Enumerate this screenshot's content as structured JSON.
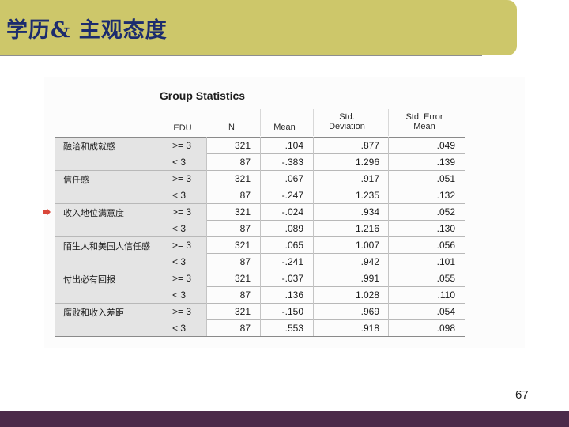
{
  "slide": {
    "title": "学历& 主观态度",
    "page_number": "67"
  },
  "table": {
    "title": "Group Statistics",
    "headers": {
      "edu": "EDU",
      "n": "N",
      "mean": "Mean",
      "std_dev_1": "Std.",
      "std_dev_2": "Deviation",
      "std_err_1": "Std. Error",
      "std_err_2": "Mean"
    },
    "groups": [
      {
        "label": "融洽和成就感",
        "rows": [
          {
            "edu": ">= 3",
            "n": "321",
            "mean": ".104",
            "sd": ".877",
            "se": ".049"
          },
          {
            "edu": "< 3",
            "n": "87",
            "mean": "-.383",
            "sd": "1.296",
            "se": ".139"
          }
        ]
      },
      {
        "label": "信任感",
        "rows": [
          {
            "edu": ">= 3",
            "n": "321",
            "mean": ".067",
            "sd": ".917",
            "se": ".051"
          },
          {
            "edu": "< 3",
            "n": "87",
            "mean": "-.247",
            "sd": "1.235",
            "se": ".132"
          }
        ]
      },
      {
        "label": "收入地位满意度",
        "rows": [
          {
            "edu": ">= 3",
            "n": "321",
            "mean": "-.024",
            "sd": ".934",
            "se": ".052"
          },
          {
            "edu": "< 3",
            "n": "87",
            "mean": ".089",
            "sd": "1.216",
            "se": ".130"
          }
        ]
      },
      {
        "label": "陌生人和美国人信任感",
        "rows": [
          {
            "edu": ">= 3",
            "n": "321",
            "mean": ".065",
            "sd": "1.007",
            "se": ".056"
          },
          {
            "edu": "< 3",
            "n": "87",
            "mean": "-.241",
            "sd": ".942",
            "se": ".101"
          }
        ]
      },
      {
        "label": "付出必有回报",
        "rows": [
          {
            "edu": ">= 3",
            "n": "321",
            "mean": "-.037",
            "sd": ".991",
            "se": ".055"
          },
          {
            "edu": "< 3",
            "n": "87",
            "mean": ".136",
            "sd": "1.028",
            "se": ".110"
          }
        ]
      },
      {
        "label": "腐败和收入差距",
        "rows": [
          {
            "edu": ">= 3",
            "n": "321",
            "mean": "-.150",
            "sd": ".969",
            "se": ".054"
          },
          {
            "edu": "< 3",
            "n": "87",
            "mean": ".553",
            "sd": ".918",
            "se": ".098"
          }
        ]
      }
    ]
  },
  "icons": {
    "marker": "arrow-right-icon"
  },
  "colors": {
    "title_bar": "#cdc76a",
    "title_text": "#1c2c6e",
    "bottom_bar": "#4c2b4a",
    "arrow": "#d9473a"
  }
}
